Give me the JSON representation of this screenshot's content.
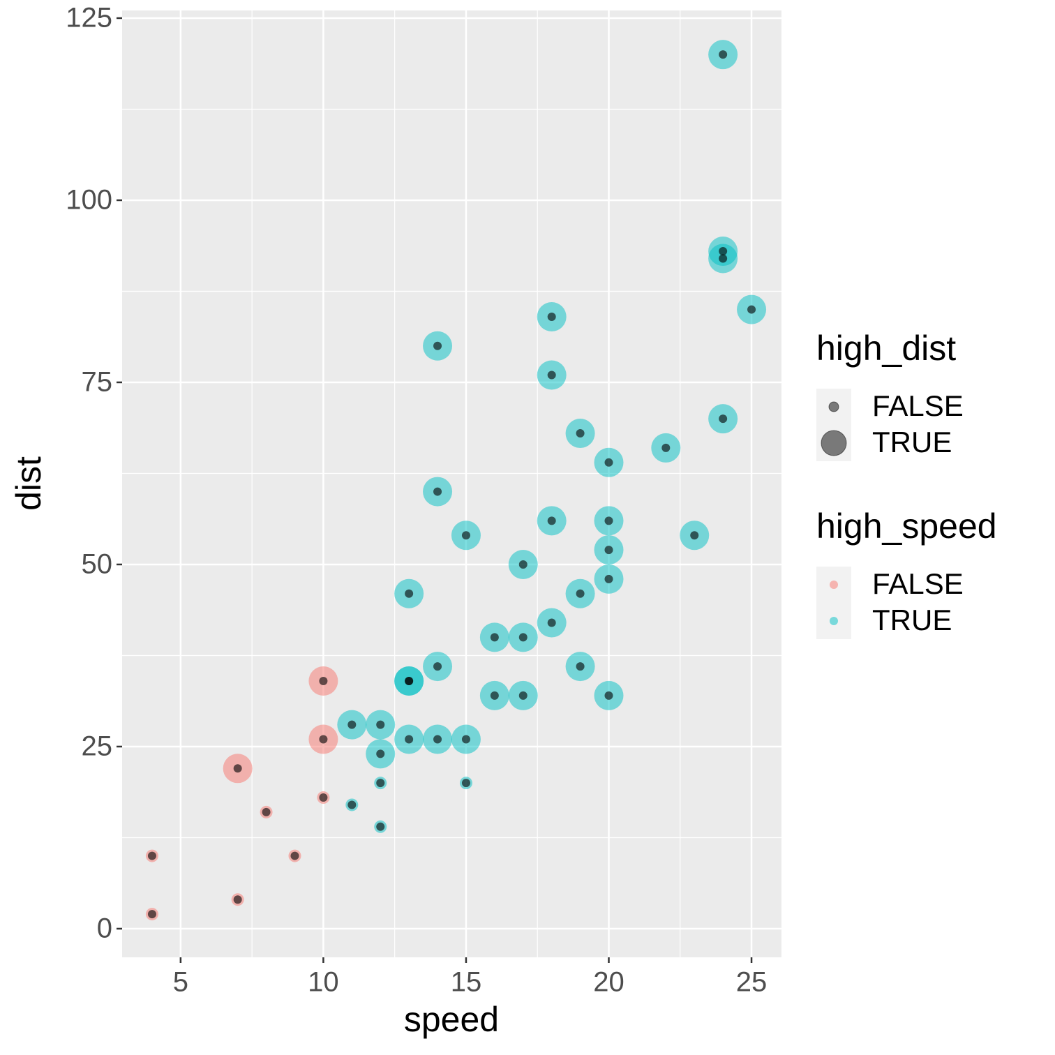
{
  "chart_data": {
    "type": "scatter",
    "x_label": "speed",
    "y_label": "dist",
    "x": [
      4,
      4,
      7,
      7,
      8,
      9,
      10,
      10,
      10,
      11,
      11,
      12,
      12,
      12,
      12,
      13,
      13,
      13,
      13,
      14,
      14,
      14,
      14,
      15,
      15,
      15,
      16,
      16,
      17,
      17,
      17,
      18,
      18,
      18,
      18,
      19,
      19,
      19,
      20,
      20,
      20,
      20,
      20,
      22,
      23,
      24,
      24,
      24,
      24,
      25
    ],
    "y": [
      2,
      10,
      4,
      22,
      16,
      10,
      18,
      26,
      34,
      17,
      28,
      14,
      20,
      24,
      28,
      26,
      34,
      34,
      46,
      26,
      36,
      60,
      80,
      20,
      26,
      54,
      32,
      40,
      32,
      40,
      50,
      42,
      56,
      76,
      84,
      36,
      46,
      68,
      32,
      48,
      52,
      56,
      64,
      66,
      54,
      70,
      92,
      93,
      120,
      85
    ],
    "high_dist": [
      false,
      false,
      false,
      true,
      false,
      false,
      false,
      true,
      true,
      false,
      true,
      false,
      false,
      true,
      true,
      true,
      true,
      true,
      true,
      true,
      true,
      true,
      true,
      false,
      true,
      true,
      true,
      true,
      true,
      true,
      true,
      true,
      true,
      true,
      true,
      true,
      true,
      true,
      true,
      true,
      true,
      true,
      true,
      true,
      true,
      true,
      true,
      true,
      true,
      true
    ],
    "high_speed": [
      false,
      false,
      false,
      false,
      false,
      false,
      false,
      false,
      false,
      true,
      true,
      true,
      true,
      true,
      true,
      true,
      true,
      true,
      true,
      true,
      true,
      true,
      true,
      true,
      true,
      true,
      true,
      true,
      true,
      true,
      true,
      true,
      true,
      true,
      true,
      true,
      true,
      true,
      true,
      true,
      true,
      true,
      true,
      true,
      true,
      true,
      true,
      true,
      true,
      true
    ],
    "dot_color": "#000000",
    "xlim": [
      2.95,
      26.05
    ],
    "ylim": [
      -3.93,
      126.05
    ],
    "xticks": [
      5,
      10,
      15,
      20,
      25
    ],
    "yticks": [
      0,
      25,
      50,
      75,
      100,
      125
    ],
    "grid": true,
    "legends": [
      {
        "title": "high_dist",
        "labels": [
          "FALSE",
          "TRUE"
        ]
      },
      {
        "title": "high_speed",
        "labels": [
          "FALSE",
          "TRUE"
        ],
        "colors": [
          "#F8766D",
          "#00BFC4"
        ]
      }
    ]
  }
}
